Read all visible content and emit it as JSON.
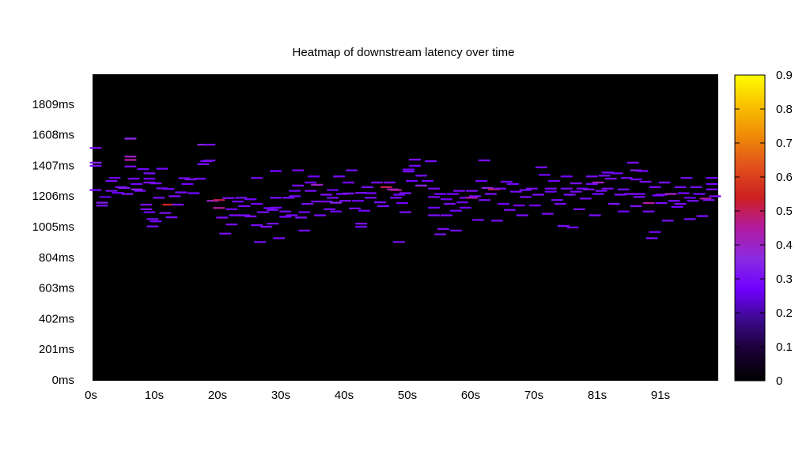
{
  "chart_data": {
    "type": "heatmap",
    "title": "Heatmap of downstream latency over time",
    "xlabel": "",
    "ylabel": "",
    "x_tick_labels": [
      "0s",
      "10s",
      "20s",
      "30s",
      "40s",
      "50s",
      "60s",
      "70s",
      "81s",
      "91s"
    ],
    "y_tick_labels": [
      "0ms",
      "201ms",
      "402ms",
      "603ms",
      "804ms",
      "1005ms",
      "1206ms",
      "1407ms",
      "1608ms",
      "1809ms"
    ],
    "colorbar_tick_labels": [
      "0",
      "0.1",
      "0.2",
      "0.3",
      "0.4",
      "0.5",
      "0.6",
      "0.7",
      "0.8",
      "0.9"
    ],
    "x_range_s": [
      0,
      99
    ],
    "y_range_ms": [
      0,
      2010
    ],
    "value_range": [
      0,
      0.9
    ],
    "colormap": [
      "#000000",
      "#1a0033",
      "#3c0a8c",
      "#7000ff",
      "#8a2be2",
      "#b21aa0",
      "#cc2020",
      "#e0501c",
      "#ef8a08",
      "#f8c000",
      "#ffff00"
    ],
    "background": "#000000",
    "grid": false,
    "colorbar": "right",
    "cell_width_s": 1.9,
    "cell_height_ms": 12,
    "cells": [
      [
        0.5,
        1527,
        0.3
      ],
      [
        0.5,
        1430,
        0.35
      ],
      [
        0.5,
        1410,
        0.3
      ],
      [
        0.5,
        1250,
        0.28
      ],
      [
        1.5,
        1168,
        0.32
      ],
      [
        1.5,
        1148,
        0.3
      ],
      [
        2.0,
        1205,
        0.25
      ],
      [
        3.0,
        1310,
        0.3
      ],
      [
        3.0,
        1245,
        0.3
      ],
      [
        3.5,
        1330,
        0.28
      ],
      [
        4.0,
        1232,
        0.26
      ],
      [
        4.5,
        1270,
        0.3
      ],
      [
        5.0,
        1265,
        0.32
      ],
      [
        5.5,
        1225,
        0.3
      ],
      [
        6.0,
        1588,
        0.35
      ],
      [
        6.0,
        1470,
        0.4
      ],
      [
        6.0,
        1448,
        0.45
      ],
      [
        6.0,
        1405,
        0.3
      ],
      [
        6.5,
        1325,
        0.3
      ],
      [
        7.0,
        1290,
        0.28
      ],
      [
        7.0,
        1255,
        0.35
      ],
      [
        7.5,
        1245,
        0.3
      ],
      [
        8.0,
        1388,
        0.28
      ],
      [
        8.5,
        1155,
        0.3
      ],
      [
        8.5,
        1125,
        0.32
      ],
      [
        9.0,
        1360,
        0.3
      ],
      [
        9.0,
        1325,
        0.28
      ],
      [
        9.0,
        1300,
        0.3
      ],
      [
        9.0,
        1105,
        0.28
      ],
      [
        9.5,
        1060,
        0.3
      ],
      [
        9.5,
        1012,
        0.3
      ],
      [
        10.0,
        1295,
        0.3
      ],
      [
        10.0,
        1045,
        0.28
      ],
      [
        10.5,
        1200,
        0.3
      ],
      [
        11.0,
        1390,
        0.28
      ],
      [
        11.0,
        1262,
        0.3
      ],
      [
        11.5,
        1100,
        0.3
      ],
      [
        12.0,
        1258,
        0.28
      ],
      [
        12.0,
        1155,
        0.55
      ],
      [
        12.5,
        1072,
        0.3
      ],
      [
        13.0,
        1210,
        0.3
      ],
      [
        13.5,
        1155,
        0.3
      ],
      [
        14.0,
        1235,
        0.3
      ],
      [
        14.5,
        1328,
        0.3
      ],
      [
        15.0,
        1290,
        0.28
      ],
      [
        15.5,
        1320,
        0.3
      ],
      [
        16.0,
        1230,
        0.28
      ],
      [
        17.0,
        1325,
        0.3
      ],
      [
        17.5,
        1548,
        0.35
      ],
      [
        17.5,
        1420,
        0.3
      ],
      [
        18.0,
        1440,
        0.28
      ],
      [
        18.5,
        1548,
        0.3
      ],
      [
        18.5,
        1444,
        0.3
      ],
      [
        19.0,
        1180,
        0.4
      ],
      [
        20.0,
        1185,
        0.5
      ],
      [
        20.0,
        1133,
        0.45
      ],
      [
        20.5,
        1070,
        0.3
      ],
      [
        21.0,
        965,
        0.3
      ],
      [
        21.5,
        1198,
        0.3
      ],
      [
        22.0,
        1125,
        0.28
      ],
      [
        22.0,
        1025,
        0.3
      ],
      [
        22.5,
        1085,
        0.3
      ],
      [
        23.0,
        1175,
        0.28
      ],
      [
        23.5,
        1200,
        0.3
      ],
      [
        24.0,
        1145,
        0.3
      ],
      [
        24.0,
        1085,
        0.3
      ],
      [
        25.0,
        1190,
        0.28
      ],
      [
        25.0,
        1078,
        0.3
      ],
      [
        26.0,
        1330,
        0.3
      ],
      [
        26.0,
        1160,
        0.28
      ],
      [
        26.0,
        1020,
        0.3
      ],
      [
        26.5,
        910,
        0.3
      ],
      [
        27.0,
        1105,
        0.3
      ],
      [
        27.5,
        1010,
        0.3
      ],
      [
        28.0,
        1132,
        0.28
      ],
      [
        28.5,
        1120,
        0.3
      ],
      [
        28.5,
        1030,
        0.3
      ],
      [
        29.0,
        1375,
        0.28
      ],
      [
        29.0,
        1200,
        0.3
      ],
      [
        29.0,
        1135,
        0.28
      ],
      [
        29.5,
        935,
        0.3
      ],
      [
        30.5,
        1110,
        0.3
      ],
      [
        30.5,
        1075,
        0.28
      ],
      [
        31.0,
        1200,
        0.3
      ],
      [
        31.5,
        1085,
        0.3
      ],
      [
        32.0,
        1245,
        0.28
      ],
      [
        32.0,
        1210,
        0.28
      ],
      [
        32.5,
        1280,
        0.3
      ],
      [
        32.5,
        1380,
        0.3
      ],
      [
        33.0,
        1070,
        0.3
      ],
      [
        33.5,
        985,
        0.3
      ],
      [
        33.5,
        1105,
        0.28
      ],
      [
        34.0,
        1160,
        0.3
      ],
      [
        34.5,
        1300,
        0.28
      ],
      [
        34.5,
        1245,
        0.3
      ],
      [
        35.0,
        1340,
        0.28
      ],
      [
        35.5,
        1285,
        0.4
      ],
      [
        35.5,
        1175,
        0.3
      ],
      [
        36.0,
        1085,
        0.3
      ],
      [
        37.0,
        1220,
        0.3
      ],
      [
        37.0,
        1175,
        0.28
      ],
      [
        37.5,
        1125,
        0.3
      ],
      [
        38.0,
        1250,
        0.28
      ],
      [
        38.0,
        1200,
        0.3
      ],
      [
        38.5,
        1168,
        0.35
      ],
      [
        38.5,
        1110,
        0.28
      ],
      [
        39.0,
        1340,
        0.3
      ],
      [
        39.5,
        1225,
        0.28
      ],
      [
        40.0,
        1180,
        0.3
      ],
      [
        40.5,
        1300,
        0.28
      ],
      [
        40.5,
        1228,
        0.3
      ],
      [
        41.0,
        1380,
        0.3
      ],
      [
        41.5,
        1130,
        0.3
      ],
      [
        42.0,
        1180,
        0.28
      ],
      [
        42.5,
        1030,
        0.3
      ],
      [
        42.5,
        1010,
        0.28
      ],
      [
        42.5,
        1232,
        0.3
      ],
      [
        43.0,
        1115,
        0.28
      ],
      [
        43.5,
        1270,
        0.3
      ],
      [
        44.0,
        1200,
        0.3
      ],
      [
        44.0,
        1230,
        0.28
      ],
      [
        45.0,
        1300,
        0.3
      ],
      [
        45.5,
        1170,
        0.3
      ],
      [
        46.0,
        1145,
        0.3
      ],
      [
        46.5,
        1270,
        0.5
      ],
      [
        47.0,
        1300,
        0.3
      ],
      [
        47.5,
        1255,
        0.4
      ],
      [
        48.0,
        1250,
        0.45
      ],
      [
        48.0,
        1200,
        0.3
      ],
      [
        48.5,
        1220,
        0.28
      ],
      [
        48.5,
        910,
        0.3
      ],
      [
        49.0,
        1165,
        0.28
      ],
      [
        49.5,
        1105,
        0.3
      ],
      [
        49.5,
        1230,
        0.3
      ],
      [
        50.0,
        1385,
        0.28
      ],
      [
        50.0,
        1372,
        0.3
      ],
      [
        50.5,
        1310,
        0.28
      ],
      [
        51.0,
        1450,
        0.3
      ],
      [
        51.0,
        1410,
        0.28
      ],
      [
        52.0,
        1345,
        0.3
      ],
      [
        52.0,
        1280,
        0.35
      ],
      [
        53.0,
        1310,
        0.28
      ],
      [
        53.5,
        1440,
        0.3
      ],
      [
        54.0,
        1260,
        0.3
      ],
      [
        54.0,
        1205,
        0.3
      ],
      [
        54.0,
        1135,
        0.28
      ],
      [
        54.0,
        1085,
        0.3
      ],
      [
        55.0,
        1225,
        0.28
      ],
      [
        55.0,
        960,
        0.3
      ],
      [
        55.5,
        995,
        0.3
      ],
      [
        56.0,
        1190,
        0.28
      ],
      [
        56.0,
        1085,
        0.3
      ],
      [
        56.5,
        1160,
        0.3
      ],
      [
        57.0,
        1225,
        0.28
      ],
      [
        57.5,
        1115,
        0.28
      ],
      [
        57.5,
        985,
        0.3
      ],
      [
        58.0,
        1245,
        0.3
      ],
      [
        58.5,
        1170,
        0.28
      ],
      [
        59.0,
        1200,
        0.3
      ],
      [
        59.0,
        1135,
        0.28
      ],
      [
        60.0,
        1200,
        0.45
      ],
      [
        60.0,
        1245,
        0.3
      ],
      [
        60.5,
        1210,
        0.3
      ],
      [
        61.0,
        1055,
        0.3
      ],
      [
        61.5,
        1310,
        0.28
      ],
      [
        62.0,
        1185,
        0.3
      ],
      [
        62.0,
        1445,
        0.3
      ],
      [
        62.5,
        1265,
        0.35
      ],
      [
        63.0,
        1225,
        0.3
      ],
      [
        63.5,
        1255,
        0.5
      ],
      [
        64.0,
        1050,
        0.3
      ],
      [
        64.5,
        1260,
        0.3
      ],
      [
        65.0,
        1160,
        0.28
      ],
      [
        65.5,
        1305,
        0.28
      ],
      [
        66.0,
        1120,
        0.3
      ],
      [
        66.5,
        1290,
        0.28
      ],
      [
        67.0,
        1240,
        0.3
      ],
      [
        67.5,
        1150,
        0.28
      ],
      [
        68.0,
        1085,
        0.3
      ],
      [
        68.5,
        1250,
        0.3
      ],
      [
        68.5,
        1205,
        0.3
      ],
      [
        69.5,
        1260,
        0.3
      ],
      [
        70.0,
        1150,
        0.28
      ],
      [
        70.5,
        1220,
        0.3
      ],
      [
        71.0,
        1400,
        0.3
      ],
      [
        71.5,
        1350,
        0.28
      ],
      [
        72.0,
        1095,
        0.3
      ],
      [
        72.5,
        1240,
        0.28
      ],
      [
        72.5,
        1260,
        0.3
      ],
      [
        73.0,
        1310,
        0.28
      ],
      [
        73.5,
        1185,
        0.3
      ],
      [
        74.0,
        1160,
        0.3
      ],
      [
        74.5,
        1015,
        0.3
      ],
      [
        75.0,
        1340,
        0.28
      ],
      [
        75.0,
        1260,
        0.3
      ],
      [
        75.5,
        1220,
        0.3
      ],
      [
        76.0,
        1005,
        0.28
      ],
      [
        76.5,
        1295,
        0.3
      ],
      [
        76.5,
        1240,
        0.3
      ],
      [
        77.0,
        1125,
        0.3
      ],
      [
        77.5,
        1260,
        0.28
      ],
      [
        78.0,
        1195,
        0.3
      ],
      [
        78.5,
        1255,
        0.3
      ],
      [
        79.0,
        1340,
        0.3
      ],
      [
        79.0,
        1290,
        0.28
      ],
      [
        79.5,
        1085,
        0.3
      ],
      [
        80.0,
        1225,
        0.28
      ],
      [
        80.0,
        1300,
        0.4
      ],
      [
        80.5,
        1245,
        0.3
      ],
      [
        81.0,
        1345,
        0.3
      ],
      [
        81.5,
        1365,
        0.28
      ],
      [
        81.5,
        1260,
        0.3
      ],
      [
        82.0,
        1325,
        0.3
      ],
      [
        82.5,
        1160,
        0.3
      ],
      [
        83.0,
        1360,
        0.28
      ],
      [
        83.5,
        1220,
        0.3
      ],
      [
        84.0,
        1255,
        0.3
      ],
      [
        84.0,
        1110,
        0.28
      ],
      [
        84.5,
        1330,
        0.3
      ],
      [
        85.0,
        1225,
        0.3
      ],
      [
        85.5,
        1430,
        0.3
      ],
      [
        86.0,
        1380,
        0.35
      ],
      [
        86.0,
        1320,
        0.28
      ],
      [
        86.0,
        1145,
        0.3
      ],
      [
        86.5,
        1205,
        0.3
      ],
      [
        86.5,
        1225,
        0.28
      ],
      [
        87.0,
        1375,
        0.28
      ],
      [
        87.5,
        1305,
        0.3
      ],
      [
        88.0,
        1165,
        0.45
      ],
      [
        88.0,
        1110,
        0.3
      ],
      [
        88.5,
        935,
        0.3
      ],
      [
        89.0,
        975,
        0.28
      ],
      [
        89.0,
        1270,
        0.3
      ],
      [
        89.5,
        1215,
        0.28
      ],
      [
        90.0,
        1220,
        0.3
      ],
      [
        90.0,
        1165,
        0.3
      ],
      [
        90.5,
        1300,
        0.3
      ],
      [
        91.0,
        1050,
        0.3
      ],
      [
        91.5,
        1225,
        0.4
      ],
      [
        92.0,
        1180,
        0.3
      ],
      [
        92.5,
        1140,
        0.28
      ],
      [
        93.0,
        1160,
        0.3
      ],
      [
        93.0,
        1270,
        0.3
      ],
      [
        93.5,
        1230,
        0.28
      ],
      [
        94.0,
        1330,
        0.3
      ],
      [
        94.5,
        1200,
        0.28
      ],
      [
        94.5,
        1060,
        0.3
      ],
      [
        95.0,
        1180,
        0.3
      ],
      [
        95.5,
        1270,
        0.3
      ],
      [
        96.0,
        1225,
        0.28
      ],
      [
        96.5,
        1080,
        0.3
      ],
      [
        97.0,
        1195,
        0.45
      ],
      [
        97.5,
        1185,
        0.3
      ],
      [
        98.0,
        1330,
        0.3
      ],
      [
        98.0,
        1290,
        0.28
      ],
      [
        98.0,
        1255,
        0.3
      ],
      [
        98.5,
        1210,
        0.3
      ]
    ]
  }
}
